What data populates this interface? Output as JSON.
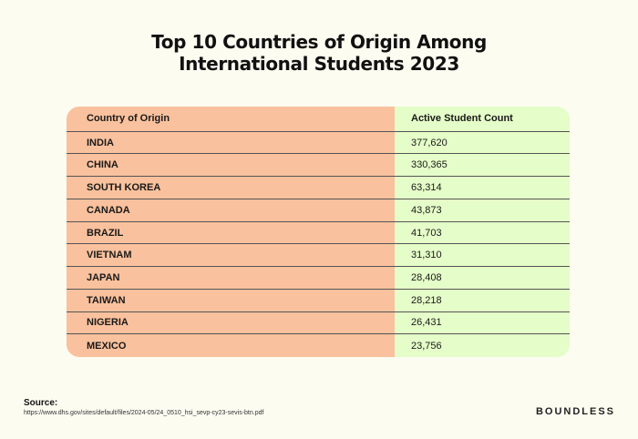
{
  "chart_data": {
    "type": "table",
    "title_lines": [
      "Top 10 Countries of Origin Among",
      "International Students 2023"
    ],
    "columns": [
      "Country of Origin",
      "Active Student Count"
    ],
    "rows": [
      {
        "country": "INDIA",
        "count": "377,620"
      },
      {
        "country": "CHINA",
        "count": "330,365"
      },
      {
        "country": "SOUTH KOREA",
        "count": "63,314"
      },
      {
        "country": "CANADA",
        "count": "43,873"
      },
      {
        "country": "BRAZIL",
        "count": "41,703"
      },
      {
        "country": "VIETNAM",
        "count": "31,310"
      },
      {
        "country": "JAPAN",
        "count": "28,408"
      },
      {
        "country": "TAIWAN",
        "count": "28,218"
      },
      {
        "country": "NIGERIA",
        "count": "26,431"
      },
      {
        "country": "MEXICO",
        "count": "23,756"
      }
    ],
    "colors": {
      "country_column": "#f9c19d",
      "count_column": "#e5fdc8",
      "background": "#fdfcf1"
    }
  },
  "source": {
    "label": "Source:",
    "url": "https://www.dhs.gov/sites/default/files/2024-05/24_0510_hsi_sevp-cy23-sevis-btn.pdf"
  },
  "brand": "BOUNDLESS"
}
